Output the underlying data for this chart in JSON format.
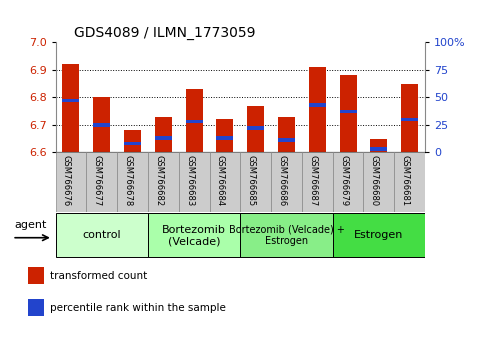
{
  "title": "GDS4089 / ILMN_1773059",
  "samples": [
    "GSM766676",
    "GSM766677",
    "GSM766678",
    "GSM766682",
    "GSM766683",
    "GSM766684",
    "GSM766685",
    "GSM766686",
    "GSM766687",
    "GSM766679",
    "GSM766680",
    "GSM766681"
  ],
  "transformed_count": [
    6.92,
    6.8,
    6.68,
    6.73,
    6.83,
    6.72,
    6.77,
    6.73,
    6.91,
    6.88,
    6.65,
    6.85
  ],
  "percentile_rank": [
    47,
    25,
    8,
    13,
    28,
    13,
    22,
    11,
    43,
    37,
    3,
    30
  ],
  "ylim_left": [
    6.6,
    7.0
  ],
  "ylim_right": [
    0,
    100
  ],
  "yticks_left": [
    6.6,
    6.7,
    6.8,
    6.9,
    7.0
  ],
  "yticks_right": [
    0,
    25,
    50,
    75,
    100
  ],
  "ytick_labels_right": [
    "0",
    "25",
    "50",
    "75",
    "100%"
  ],
  "bar_bottom": 6.6,
  "bar_color": "#cc2200",
  "percentile_color": "#2244cc",
  "groups": [
    {
      "label": "control",
      "indices": [
        0,
        1,
        2
      ],
      "color": "#ccffcc"
    },
    {
      "label": "Bortezomib\n(Velcade)",
      "indices": [
        3,
        4,
        5
      ],
      "color": "#aaffaa"
    },
    {
      "label": "Bortezomib (Velcade) +\nEstrogen",
      "indices": [
        6,
        7,
        8
      ],
      "color": "#88ee88"
    },
    {
      "label": "Estrogen",
      "indices": [
        9,
        10,
        11
      ],
      "color": "#44dd44"
    }
  ],
  "agent_label": "agent",
  "legend_items": [
    {
      "label": "transformed count",
      "color": "#cc2200"
    },
    {
      "label": "percentile rank within the sample",
      "color": "#2244cc"
    }
  ],
  "bg_color": "#ffffff",
  "tick_label_color_left": "#cc2200",
  "tick_label_color_right": "#2244cc",
  "bar_width": 0.55,
  "cell_bg_color": "#cccccc",
  "cell_border_color": "#888888"
}
